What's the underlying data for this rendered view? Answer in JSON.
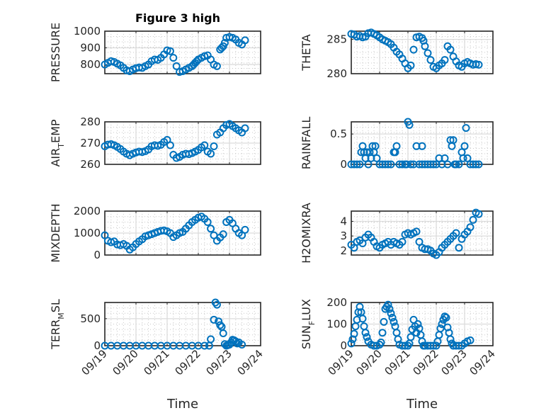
{
  "figure_title": "Figure 3 high",
  "marker_color": "#0072BD",
  "chart_data": [
    {
      "type": "scatter",
      "id": "pressure",
      "ylabel": "PRESSURE",
      "title": "Figure 3 high",
      "ylim": [
        745,
        1000
      ],
      "yticks": [
        800,
        900,
        1000
      ],
      "xlim": [
        0,
        5
      ],
      "xticklabels": [],
      "grid": true,
      "minor_grid": true,
      "x": [
        0.0,
        0.1,
        0.2,
        0.3,
        0.4,
        0.5,
        0.6,
        0.7,
        0.8,
        0.9,
        1.0,
        1.1,
        1.2,
        1.3,
        1.4,
        1.5,
        1.6,
        1.7,
        1.8,
        1.9,
        2.0,
        2.1,
        2.2,
        2.3,
        2.4,
        2.5,
        2.6,
        2.7,
        2.8,
        2.85,
        2.9,
        2.95,
        3.0,
        3.1,
        3.2,
        3.3,
        3.4,
        3.5,
        3.6,
        3.7,
        3.75,
        3.8,
        3.85,
        3.9,
        4.0,
        4.1,
        4.2,
        4.3,
        4.4,
        4.5
      ],
      "y": [
        800,
        810,
        820,
        815,
        805,
        795,
        780,
        765,
        760,
        770,
        778,
        782,
        780,
        790,
        800,
        820,
        830,
        828,
        840,
        860,
        885,
        880,
        840,
        790,
        755,
        760,
        770,
        780,
        790,
        800,
        810,
        820,
        830,
        840,
        850,
        855,
        830,
        800,
        790,
        890,
        900,
        910,
        930,
        960,
        965,
        960,
        950,
        930,
        920,
        945
      ]
    },
    {
      "type": "scatter",
      "id": "theta",
      "ylabel": "THETA",
      "ylim": [
        280,
        286.2
      ],
      "yticks": [
        280,
        285
      ],
      "xlim": [
        0,
        5
      ],
      "xticklabels": [],
      "grid": true,
      "minor_grid": true,
      "x": [
        0.0,
        0.1,
        0.2,
        0.3,
        0.4,
        0.5,
        0.6,
        0.7,
        0.8,
        0.9,
        1.0,
        1.1,
        1.2,
        1.3,
        1.4,
        1.5,
        1.6,
        1.7,
        1.8,
        1.9,
        2.0,
        2.1,
        2.2,
        2.3,
        2.4,
        2.5,
        2.55,
        2.6,
        2.7,
        2.8,
        2.9,
        3.0,
        3.1,
        3.2,
        3.3,
        3.4,
        3.5,
        3.6,
        3.7,
        3.8,
        3.9,
        4.0,
        4.1,
        4.2,
        4.3,
        4.4,
        4.5
      ],
      "y": [
        285.8,
        285.7,
        285.4,
        285.5,
        285.3,
        285.4,
        285.9,
        286.0,
        285.8,
        285.6,
        285.3,
        285.0,
        284.8,
        284.6,
        284.3,
        283.8,
        283.2,
        282.8,
        282.2,
        281.5,
        280.8,
        281.2,
        283.5,
        285.3,
        285.4,
        285.2,
        284.8,
        284.0,
        283.0,
        282.0,
        281.0,
        280.8,
        281.2,
        281.5,
        282.0,
        284.0,
        283.5,
        282.5,
        281.8,
        281.2,
        281.0,
        281.5,
        281.7,
        281.5,
        281.3,
        281.4,
        281.3
      ]
    },
    {
      "type": "scatter",
      "id": "air_temp",
      "ylabel": "AIR_TEMP",
      "ylabel_display": [
        "AIR",
        "T",
        "EMP"
      ],
      "ylim": [
        260,
        280
      ],
      "yticks": [
        260,
        270,
        280
      ],
      "xlim": [
        0,
        5
      ],
      "xticklabels": [],
      "grid": true,
      "minor_grid": true,
      "x": [
        0.0,
        0.1,
        0.2,
        0.3,
        0.4,
        0.5,
        0.6,
        0.7,
        0.8,
        0.9,
        1.0,
        1.1,
        1.2,
        1.3,
        1.4,
        1.5,
        1.6,
        1.7,
        1.8,
        1.9,
        2.0,
        2.1,
        2.2,
        2.3,
        2.4,
        2.5,
        2.6,
        2.7,
        2.8,
        2.9,
        3.0,
        3.1,
        3.2,
        3.3,
        3.4,
        3.5,
        3.6,
        3.7,
        3.8,
        3.9,
        4.0,
        4.1,
        4.2,
        4.3,
        4.4,
        4.5
      ],
      "y": [
        268.5,
        269.3,
        269.5,
        269.0,
        268.2,
        267.2,
        266.0,
        265.0,
        264.3,
        265.0,
        265.6,
        266.0,
        265.8,
        266.2,
        267.0,
        268.5,
        269.0,
        268.7,
        269.2,
        270.5,
        271.5,
        269.0,
        264.5,
        263.0,
        263.5,
        264.5,
        265.0,
        264.8,
        265.3,
        266.0,
        266.8,
        268.0,
        269.0,
        266.0,
        265.0,
        268.5,
        274.0,
        275.0,
        277.0,
        278.5,
        279.0,
        278.0,
        277.0,
        276.0,
        275.0,
        277.0
      ]
    },
    {
      "type": "scatter",
      "id": "rainfall",
      "ylabel": "RAINFALL",
      "ylim": [
        0,
        0.7
      ],
      "yticks": [
        0,
        0.5
      ],
      "xlim": [
        0,
        5
      ],
      "xticklabels": [],
      "grid": true,
      "minor_grid": true,
      "x": [
        0.0,
        0.1,
        0.2,
        0.3,
        0.35,
        0.4,
        0.45,
        0.5,
        0.55,
        0.6,
        0.65,
        0.7,
        0.75,
        0.8,
        0.85,
        0.9,
        1.0,
        1.1,
        1.2,
        1.3,
        1.4,
        1.5,
        1.55,
        1.6,
        1.7,
        1.8,
        1.9,
        2.0,
        2.05,
        2.1,
        2.2,
        2.3,
        2.4,
        2.5,
        2.6,
        2.7,
        2.8,
        2.9,
        3.0,
        3.1,
        3.2,
        3.3,
        3.4,
        3.5,
        3.55,
        3.6,
        3.7,
        3.8,
        3.9,
        3.95,
        4.0,
        4.05,
        4.1,
        4.2,
        4.3,
        4.4,
        4.5,
        1.95,
        2.5,
        3.65
      ],
      "y": [
        0,
        0,
        0,
        0,
        0.2,
        0.3,
        0.2,
        0.1,
        0.2,
        0,
        0.2,
        0.1,
        0.3,
        0.2,
        0.3,
        0.1,
        0,
        0,
        0,
        0,
        0,
        0.2,
        0.2,
        0.3,
        0,
        0,
        0,
        0.7,
        0.65,
        0,
        0,
        0.3,
        0,
        0.3,
        0,
        0,
        0,
        0,
        0,
        0.1,
        0,
        0.1,
        0,
        0.4,
        0.3,
        0.4,
        0,
        0,
        0.2,
        0.1,
        0.3,
        0.6,
        0.1,
        0,
        0,
        0,
        0,
        0,
        0,
        0
      ]
    },
    {
      "type": "scatter",
      "id": "mixdepth",
      "ylabel": "MIXDEPTH",
      "ylim": [
        0,
        2000
      ],
      "yticks": [
        0,
        1000,
        2000
      ],
      "xlim": [
        0,
        5
      ],
      "xticklabels": [],
      "grid": true,
      "minor_grid": true,
      "x": [
        0.0,
        0.1,
        0.2,
        0.3,
        0.4,
        0.5,
        0.6,
        0.7,
        0.8,
        0.9,
        1.0,
        1.1,
        1.2,
        1.3,
        1.4,
        1.5,
        1.6,
        1.7,
        1.8,
        1.9,
        2.0,
        2.1,
        2.2,
        2.3,
        2.4,
        2.5,
        2.6,
        2.7,
        2.8,
        2.9,
        3.0,
        3.1,
        3.2,
        3.3,
        3.4,
        3.5,
        3.6,
        3.7,
        3.8,
        3.9,
        4.0,
        4.1,
        4.2,
        4.3,
        4.4,
        4.5
      ],
      "y": [
        900,
        650,
        580,
        620,
        480,
        450,
        500,
        420,
        250,
        350,
        500,
        620,
        720,
        850,
        900,
        950,
        1000,
        1050,
        1100,
        1120,
        1080,
        1000,
        820,
        900,
        1000,
        1050,
        1200,
        1350,
        1500,
        1600,
        1700,
        1750,
        1650,
        1500,
        1200,
        900,
        650,
        800,
        950,
        1500,
        1600,
        1450,
        1200,
        1000,
        900,
        1150
      ]
    },
    {
      "type": "scatter",
      "id": "h2omixra",
      "ylabel": "H2OMIXRA",
      "ylim": [
        1.7,
        4.7
      ],
      "yticks": [
        2,
        3,
        4
      ],
      "xlim": [
        0,
        5
      ],
      "xticklabels": [],
      "grid": true,
      "minor_grid": true,
      "x": [
        0.0,
        0.1,
        0.2,
        0.3,
        0.4,
        0.5,
        0.6,
        0.7,
        0.8,
        0.9,
        1.0,
        1.1,
        1.2,
        1.3,
        1.4,
        1.5,
        1.6,
        1.7,
        1.8,
        1.9,
        2.0,
        2.1,
        2.2,
        2.3,
        2.4,
        2.5,
        2.6,
        2.7,
        2.8,
        2.9,
        3.0,
        3.1,
        3.2,
        3.3,
        3.4,
        3.5,
        3.6,
        3.7,
        3.8,
        3.9,
        4.0,
        4.1,
        4.2,
        4.3,
        4.4,
        4.5
      ],
      "y": [
        2.4,
        2.2,
        2.6,
        2.7,
        2.5,
        2.9,
        3.1,
        2.9,
        2.6,
        2.3,
        2.2,
        2.4,
        2.5,
        2.6,
        2.4,
        2.6,
        2.5,
        2.4,
        2.6,
        3.1,
        3.2,
        3.1,
        3.2,
        3.3,
        2.6,
        2.2,
        2.1,
        2.1,
        2.0,
        1.8,
        1.7,
        1.9,
        2.2,
        2.4,
        2.6,
        2.8,
        3.0,
        3.2,
        2.2,
        2.8,
        3.1,
        3.3,
        3.6,
        4.1,
        4.6,
        4.5
      ]
    },
    {
      "type": "scatter",
      "id": "terr_msl",
      "ylabel": "TERR_MSL",
      "ylabel_display": [
        "TERR",
        "M",
        "SL"
      ],
      "ylim": [
        0,
        800
      ],
      "yticks": [
        0,
        500
      ],
      "xlim": [
        0,
        5
      ],
      "xticklabels": [
        "09/19",
        "09/20",
        "09/21",
        "09/22",
        "09/23",
        "09/24"
      ],
      "xlabel": "Time",
      "grid": true,
      "minor_grid": true,
      "x": [
        0.0,
        0.2,
        0.4,
        0.6,
        0.8,
        1.0,
        1.2,
        1.4,
        1.6,
        1.8,
        2.0,
        2.2,
        2.4,
        2.6,
        2.8,
        3.0,
        3.2,
        3.35,
        3.4,
        3.5,
        3.55,
        3.6,
        3.65,
        3.7,
        3.75,
        3.8,
        3.85,
        3.9,
        3.95,
        4.0,
        4.05,
        4.1,
        4.15,
        4.2,
        4.25,
        4.3,
        4.4
      ],
      "y": [
        0,
        0,
        0,
        0,
        0,
        0,
        0,
        0,
        0,
        0,
        0,
        0,
        0,
        0,
        0,
        0,
        0,
        0,
        120,
        480,
        800,
        760,
        450,
        380,
        350,
        230,
        30,
        0,
        10,
        20,
        60,
        110,
        100,
        80,
        40,
        60,
        20
      ]
    },
    {
      "type": "scatter",
      "id": "sun_flux",
      "ylabel": "SUN_FLUX",
      "ylabel_display": [
        "SUN",
        "F",
        "LUX"
      ],
      "ylim": [
        0,
        200
      ],
      "yticks": [
        0,
        100,
        200
      ],
      "xlim": [
        0,
        5
      ],
      "xticklabels": [
        "09/19",
        "09/20",
        "09/21",
        "09/22",
        "09/23",
        "09/24"
      ],
      "xlabel": "Time",
      "grid": true,
      "minor_grid": true,
      "x": [
        0.0,
        0.05,
        0.1,
        0.15,
        0.2,
        0.25,
        0.3,
        0.35,
        0.4,
        0.45,
        0.5,
        0.55,
        0.6,
        0.7,
        0.8,
        0.9,
        1.0,
        1.05,
        1.1,
        1.15,
        1.2,
        1.25,
        1.3,
        1.35,
        1.4,
        1.45,
        1.5,
        1.55,
        1.6,
        1.65,
        1.7,
        1.8,
        1.9,
        2.0,
        2.05,
        2.1,
        2.15,
        2.2,
        2.25,
        2.3,
        2.35,
        2.4,
        2.45,
        2.5,
        2.55,
        2.6,
        2.7,
        2.8,
        2.9,
        3.0,
        3.05,
        3.1,
        3.15,
        3.2,
        3.25,
        3.3,
        3.35,
        3.4,
        3.45,
        3.5,
        3.55,
        3.6,
        3.7,
        3.8,
        3.9,
        4.0,
        4.1,
        4.2
      ],
      "y": [
        10,
        30,
        55,
        90,
        120,
        155,
        180,
        155,
        125,
        90,
        60,
        40,
        20,
        5,
        0,
        0,
        5,
        15,
        60,
        110,
        170,
        180,
        190,
        170,
        150,
        130,
        110,
        90,
        60,
        30,
        5,
        0,
        0,
        0,
        10,
        40,
        75,
        120,
        90,
        60,
        100,
        80,
        50,
        20,
        0,
        0,
        0,
        0,
        0,
        0,
        20,
        50,
        80,
        100,
        120,
        135,
        130,
        85,
        60,
        30,
        10,
        0,
        0,
        0,
        0,
        10,
        20,
        25
      ]
    }
  ]
}
